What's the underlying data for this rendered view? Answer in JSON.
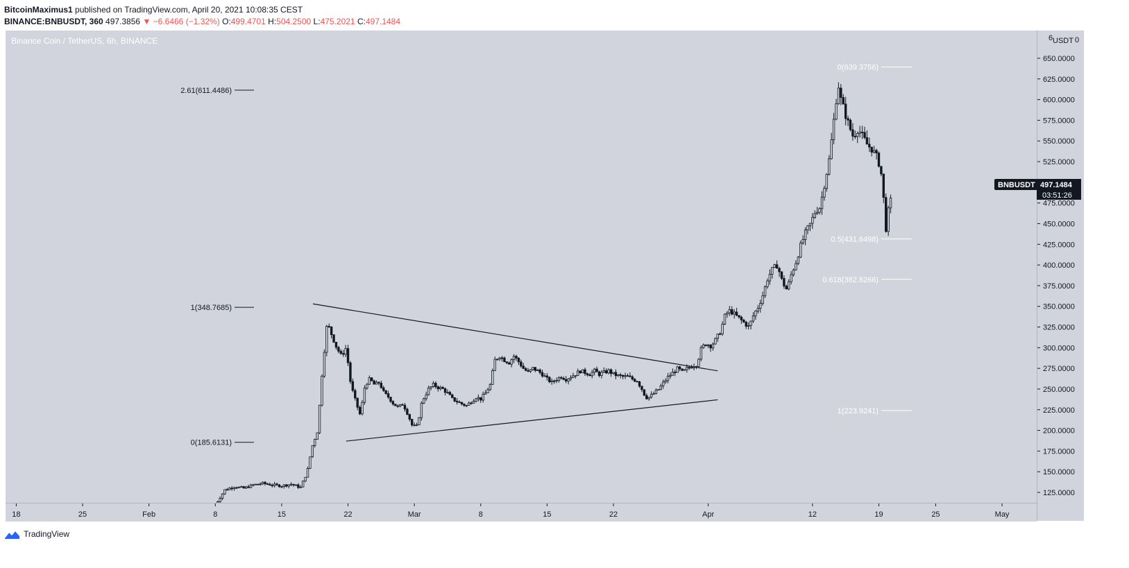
{
  "header": {
    "author": "BitcoinMaximus1",
    "published": " published on TradingView.com, April 20, 2021 10:08:35 CEST",
    "symbol": "BINANCE:BNBUSDT, 360",
    "last": "497.3856",
    "change": "▼ −6.6466 (−1.32%)",
    "o_label": "O:",
    "o_value": "499.4701",
    "h_label": "H:",
    "h_value": "504.2500",
    "l_label": "L:",
    "l_value": "475.2021",
    "c_label": "C:",
    "c_value": "497.1484"
  },
  "chart_title": "Binance Coin / TetherUS, 6h, BINANCE",
  "currency": "USDT",
  "axis_top_labels": [
    "6",
    "0"
  ],
  "price_tag": {
    "symbol": "BNBUSDT",
    "price": "497.1484",
    "countdown": "03:51:26"
  },
  "footer": {
    "brand": "TradingView"
  },
  "colors": {
    "background": "#d1d4dc",
    "candle": "#131722",
    "fib_white": "#ffffff",
    "negative": "#ef5350"
  },
  "chart_data": {
    "type": "candlestick",
    "title": "Binance Coin / TetherUS, 6h, BINANCE",
    "ylabel": "USDT",
    "ylim": [
      105,
      680
    ],
    "y_ticks": [
      125,
      150,
      175,
      200,
      225,
      250,
      275,
      300,
      325,
      350,
      375,
      400,
      425,
      450,
      475,
      500,
      525,
      550,
      575,
      600,
      625,
      650
    ],
    "y_tick_labels": [
      "125.0000",
      "150.0000",
      "175.0000",
      "200.0000",
      "225.0000",
      "250.0000",
      "275.0000",
      "300.0000",
      "325.0000",
      "350.0000",
      "375.0000",
      "400.0000",
      "425.0000",
      "450.0000",
      "475.0000",
      "500.0000",
      "525.0000",
      "550.0000",
      "575.0000",
      "600.0000",
      "625.0000",
      "650.0000"
    ],
    "x_ticks": [
      "18",
      "25",
      "Feb",
      "8",
      "15",
      "22",
      "Mar",
      "8",
      "15",
      "22",
      "Apr",
      "12",
      "19",
      "25",
      "May"
    ],
    "x_tick_day": [
      -13,
      -6,
      1,
      8,
      15,
      22,
      29,
      36,
      43,
      50,
      60,
      71,
      78,
      84,
      91
    ],
    "x_range_days": [
      -14,
      97
    ],
    "last_day": 79.25,
    "price_path": [
      [
        8.0,
        110
      ],
      [
        9.0,
        128
      ],
      [
        10.0,
        132
      ],
      [
        11.0,
        130
      ],
      [
        12.0,
        134
      ],
      [
        13.0,
        136
      ],
      [
        14.0,
        134
      ],
      [
        15.0,
        133
      ],
      [
        16.0,
        135
      ],
      [
        17.0,
        131
      ],
      [
        17.7,
        150
      ],
      [
        18.2,
        180
      ],
      [
        18.8,
        200
      ],
      [
        19.3,
        275
      ],
      [
        19.8,
        330
      ],
      [
        20.2,
        318
      ],
      [
        20.8,
        300
      ],
      [
        21.3,
        290
      ],
      [
        21.8,
        300
      ],
      [
        22.3,
        255
      ],
      [
        22.8,
        235
      ],
      [
        23.3,
        218
      ],
      [
        23.8,
        255
      ],
      [
        24.3,
        262
      ],
      [
        24.8,
        255
      ],
      [
        25.3,
        258
      ],
      [
        25.8,
        245
      ],
      [
        26.3,
        240
      ],
      [
        26.8,
        232
      ],
      [
        27.3,
        228
      ],
      [
        27.8,
        232
      ],
      [
        28.3,
        220
      ],
      [
        28.8,
        205
      ],
      [
        29.3,
        205
      ],
      [
        29.8,
        235
      ],
      [
        30.5,
        250
      ],
      [
        31.0,
        255
      ],
      [
        31.5,
        252
      ],
      [
        32.0,
        250
      ],
      [
        32.5,
        245
      ],
      [
        33.0,
        238
      ],
      [
        33.5,
        235
      ],
      [
        34.0,
        232
      ],
      [
        34.5,
        230
      ],
      [
        35.0,
        235
      ],
      [
        35.5,
        240
      ],
      [
        36.0,
        238
      ],
      [
        36.5,
        245
      ],
      [
        37.0,
        255
      ],
      [
        37.5,
        285
      ],
      [
        38.0,
        290
      ],
      [
        38.5,
        285
      ],
      [
        39.0,
        282
      ],
      [
        39.5,
        290
      ],
      [
        40.0,
        283
      ],
      [
        40.5,
        275
      ],
      [
        41.0,
        270
      ],
      [
        41.5,
        275
      ],
      [
        42.0,
        272
      ],
      [
        42.5,
        268
      ],
      [
        43.0,
        262
      ],
      [
        43.5,
        258
      ],
      [
        44.0,
        262
      ],
      [
        44.5,
        265
      ],
      [
        45.0,
        262
      ],
      [
        45.5,
        265
      ],
      [
        46.0,
        268
      ],
      [
        46.5,
        272
      ],
      [
        47.0,
        270
      ],
      [
        47.5,
        268
      ],
      [
        48.0,
        272
      ],
      [
        48.5,
        268
      ],
      [
        49.0,
        270
      ],
      [
        49.5,
        272
      ],
      [
        50.0,
        268
      ],
      [
        50.5,
        266
      ],
      [
        51.0,
        265
      ],
      [
        51.5,
        265
      ],
      [
        52.0,
        262
      ],
      [
        52.5,
        260
      ],
      [
        53.0,
        250
      ],
      [
        53.4,
        240
      ],
      [
        53.8,
        240
      ],
      [
        54.3,
        245
      ],
      [
        54.8,
        250
      ],
      [
        55.3,
        258
      ],
      [
        55.8,
        265
      ],
      [
        56.3,
        270
      ],
      [
        56.8,
        275
      ],
      [
        57.3,
        270
      ],
      [
        57.8,
        275
      ],
      [
        58.3,
        278
      ],
      [
        58.8,
        280
      ],
      [
        59.3,
        300
      ],
      [
        59.8,
        305
      ],
      [
        60.3,
        302
      ],
      [
        60.8,
        310
      ],
      [
        61.3,
        320
      ],
      [
        61.8,
        340
      ],
      [
        62.3,
        345
      ],
      [
        62.8,
        340
      ],
      [
        63.3,
        335
      ],
      [
        63.8,
        330
      ],
      [
        64.3,
        325
      ],
      [
        64.8,
        340
      ],
      [
        65.3,
        350
      ],
      [
        65.8,
        365
      ],
      [
        66.3,
        385
      ],
      [
        66.8,
        395
      ],
      [
        67.3,
        400
      ],
      [
        67.8,
        380
      ],
      [
        68.3,
        370
      ],
      [
        68.8,
        390
      ],
      [
        69.3,
        405
      ],
      [
        69.8,
        425
      ],
      [
        70.3,
        440
      ],
      [
        70.8,
        450
      ],
      [
        71.3,
        465
      ],
      [
        71.8,
        470
      ],
      [
        72.3,
        500
      ],
      [
        72.8,
        530
      ],
      [
        73.3,
        580
      ],
      [
        73.7,
        620
      ],
      [
        74.0,
        600
      ],
      [
        74.4,
        585
      ],
      [
        74.8,
        570
      ],
      [
        75.3,
        555
      ],
      [
        75.8,
        565
      ],
      [
        76.3,
        555
      ],
      [
        76.8,
        545
      ],
      [
        77.3,
        540
      ],
      [
        77.8,
        530
      ],
      [
        78.1,
        520
      ],
      [
        78.4,
        500
      ],
      [
        78.7,
        440
      ],
      [
        79.0,
        465
      ],
      [
        79.3,
        480
      ],
      [
        79.6,
        495
      ],
      [
        79.9,
        520
      ],
      [
        80.2,
        505
      ],
      [
        80.6,
        497
      ]
    ],
    "trendlines": [
      {
        "name": "triangle-upper",
        "from": [
          18.3,
          353
        ],
        "to": [
          61.0,
          272
        ]
      },
      {
        "name": "triangle-lower",
        "from": [
          21.8,
          187
        ],
        "to": [
          61.0,
          237
        ]
      }
    ],
    "fib_levels": [
      {
        "label": "2.61(611.4486)",
        "value": 611.4486,
        "group": "left"
      },
      {
        "label": "1(348.7685)",
        "value": 348.7685,
        "group": "left"
      },
      {
        "label": "0(185.6131)",
        "value": 185.6131,
        "group": "left"
      },
      {
        "label": "0(639.3756)",
        "value": 639.3756,
        "group": "right"
      },
      {
        "label": "0.5(431.6498)",
        "value": 431.6498,
        "group": "right"
      },
      {
        "label": "0.618(382.6266)",
        "value": 382.6266,
        "group": "right"
      },
      {
        "label": "1(223.9241)",
        "value": 223.9241,
        "group": "right"
      }
    ]
  }
}
